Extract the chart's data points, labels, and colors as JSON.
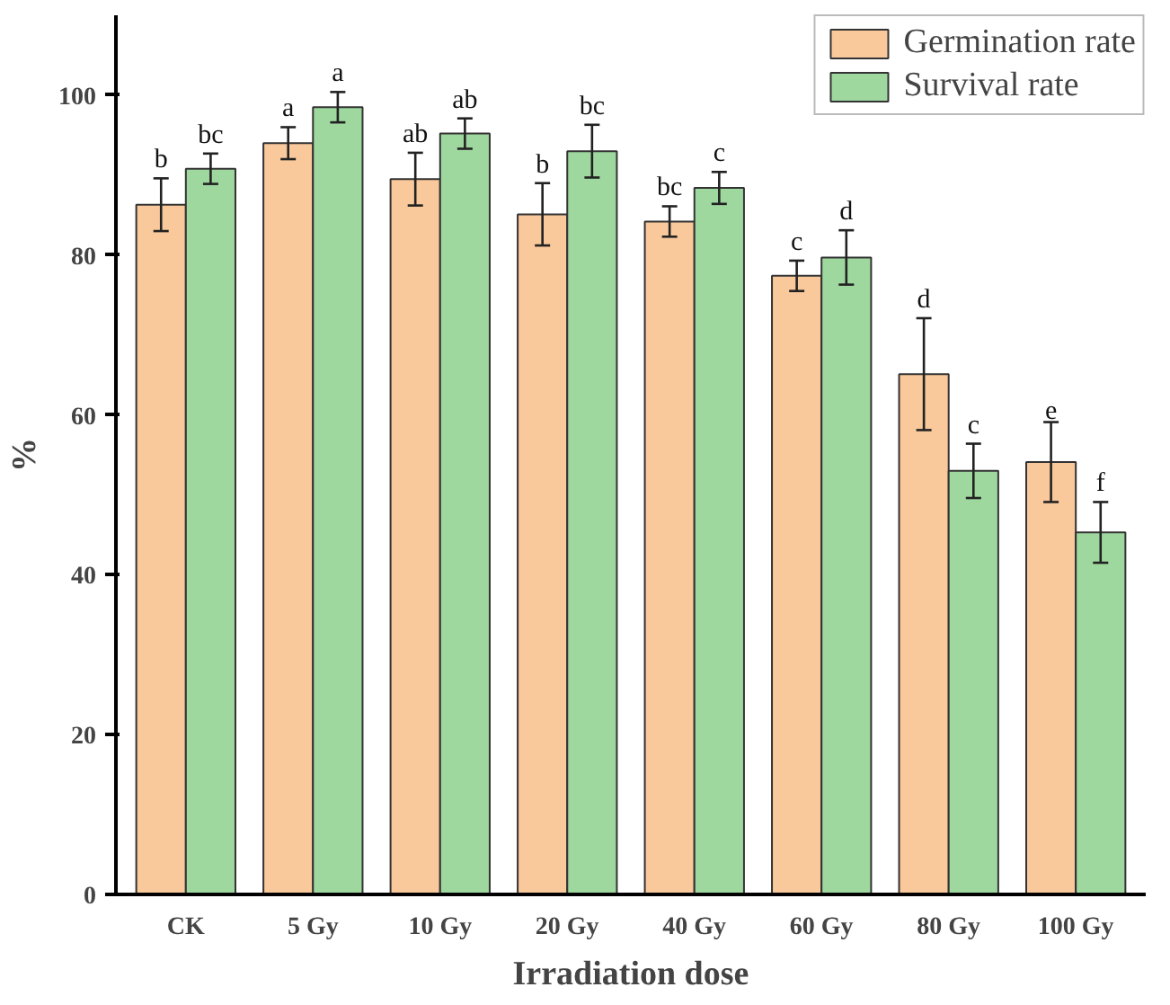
{
  "chart_data": {
    "type": "bar",
    "xlabel": "Irradiation dose",
    "ylabel": "%",
    "categories": [
      "CK",
      "5 Gy",
      "10 Gy",
      "20 Gy",
      "40 Gy",
      "60 Gy",
      "80 Gy",
      "100 Gy"
    ],
    "series": [
      {
        "name": "Germination rate",
        "color": "#f9c89b",
        "values": [
          86.3,
          94.0,
          89.5,
          85.1,
          84.2,
          77.4,
          65.1,
          54.1
        ],
        "errors": [
          3.3,
          2.0,
          3.3,
          3.9,
          1.9,
          1.9,
          7.0,
          5.0
        ],
        "value_labels": [
          "b",
          "a",
          "ab",
          "b",
          "bc",
          "c",
          "d",
          "e"
        ]
      },
      {
        "name": "Survival rate",
        "color": "#9fd89f",
        "values": [
          90.8,
          98.5,
          95.2,
          93.0,
          88.4,
          79.7,
          53.0,
          45.3
        ],
        "errors": [
          1.9,
          1.9,
          1.9,
          3.3,
          2.0,
          3.4,
          3.4,
          3.8
        ],
        "value_labels": [
          "bc",
          "a",
          "ab",
          "bc",
          "c",
          "d",
          "c",
          "f"
        ]
      }
    ],
    "ylim": [
      0,
      110
    ],
    "yticks": [
      0,
      20,
      40,
      60,
      80,
      100
    ],
    "grid": false,
    "legend": "top right"
  }
}
